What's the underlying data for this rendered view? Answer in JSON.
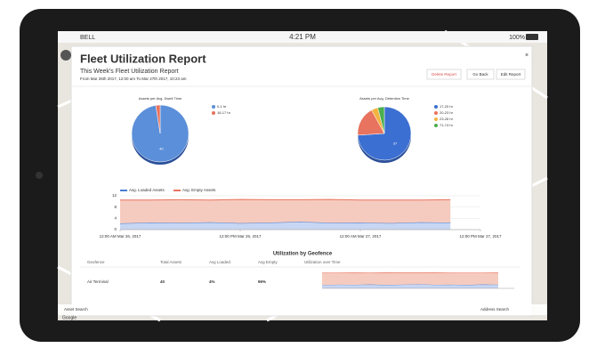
{
  "status_bar": {
    "carrier": "BELL",
    "time": "4:21 PM",
    "battery": "100%"
  },
  "report": {
    "title": "Fleet Utilization Report",
    "subtitle": "This Week's Fleet Utilization Report",
    "date_range": "From Mar 26th 2017, 12:00 am To Mar 27th 2017, 10:23 am"
  },
  "buttons": [
    "Delete Report",
    "Go Back",
    "Edit Report"
  ],
  "pie_charts": [
    {
      "type": "pie",
      "title": "Assets per Avg. Dwell Time",
      "categories": [
        "0-1 hr",
        "16-17 hr"
      ],
      "values": [
        40,
        1
      ],
      "colors": [
        "#5b8fd9",
        "#e8735e"
      ]
    },
    {
      "type": "pie",
      "title": "Assets per Avg. Detention Time",
      "categories": [
        "17-20 hr",
        "20-23 hr",
        "23-26 hr",
        "71-74 hr"
      ],
      "values": [
        37,
        9,
        2,
        2
      ],
      "colors": [
        "#3b6fd1",
        "#e8735e",
        "#f2b441",
        "#4caf50"
      ]
    }
  ],
  "chart_data": {
    "type": "line",
    "stacked": true,
    "x": [
      0,
      3,
      6,
      9,
      12,
      15,
      18,
      21,
      24,
      27,
      30,
      33
    ],
    "xlim": [
      0,
      36
    ],
    "xticks": [
      {
        "value": 0,
        "label": "12:00 AM Mar 26, 2017"
      },
      {
        "value": 12,
        "label": "12:00 PM Mar 26, 2017"
      },
      {
        "value": 24,
        "label": "12:00 AM Mar 27, 2017"
      },
      {
        "value": 36,
        "label": "12:00 PM Mar 27, 2017"
      }
    ],
    "ylim": [
      0,
      12
    ],
    "yticks": [
      0,
      4,
      8,
      12
    ],
    "grid": true,
    "series": [
      {
        "name": "Avg. Loaded Assets",
        "color": "#4a7fd4",
        "fill": "#c7d6f2",
        "values": [
          2.2,
          2.5,
          2.4,
          2.6,
          2.3,
          2.5,
          2.8,
          2.4,
          2.5,
          2.3,
          2.6,
          2.5
        ]
      },
      {
        "name": "Avg. Empty Assets",
        "color": "#e8735e",
        "fill": "#f6cbbf",
        "values": [
          8.3,
          8.0,
          8.2,
          7.9,
          8.4,
          8.1,
          7.8,
          8.3,
          8.0,
          8.2,
          7.9,
          8.1
        ]
      }
    ]
  },
  "geofence": {
    "title": "Utilization by Geofence",
    "headers": [
      "Geofence",
      "Total Assets",
      "Avg Loaded",
      "Avg Empty",
      "Utilization over Time"
    ],
    "rows": [
      [
        "Air Terminal",
        "40",
        "4%",
        "96%"
      ]
    ]
  },
  "search": [
    "Asset Search",
    "Address Search"
  ],
  "map_brand": "Google"
}
